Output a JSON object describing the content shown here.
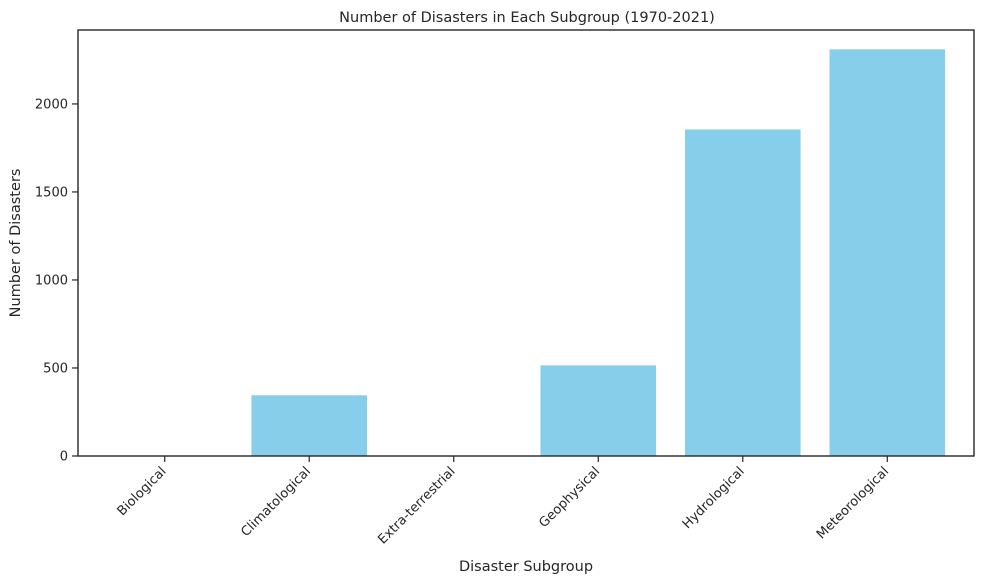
{
  "chart_data": {
    "type": "bar",
    "title": "Number of Disasters in Each Subgroup (1970-2021)",
    "xlabel": "Disaster Subgroup",
    "ylabel": "Number of Disasters",
    "categories": [
      "Biological",
      "Climatological",
      "Extra-terrestrial",
      "Geophysical",
      "Hydrological",
      "Meteorological"
    ],
    "values": [
      1,
      345,
      1,
      515,
      1855,
      2310
    ],
    "ylim": [
      0,
      2420
    ],
    "yticks": [
      0,
      500,
      1000,
      1500,
      2000
    ],
    "bar_color": "#87CEEB",
    "grid": false
  }
}
